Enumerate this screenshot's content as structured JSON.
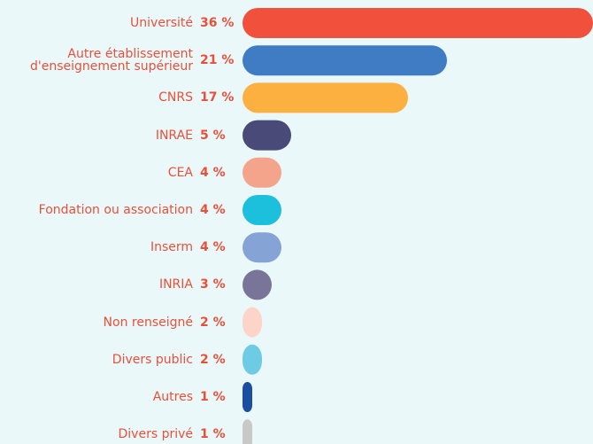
{
  "chart_data": {
    "type": "bar",
    "orientation": "horizontal",
    "categories": [
      "Université",
      "Autre établissement d'enseignement supérieur",
      "CNRS",
      "INRAE",
      "CEA",
      "Fondation ou association",
      "Inserm",
      "INRIA",
      "Non renseigné",
      "Divers public",
      "Autres",
      "Divers privé"
    ],
    "values": [
      36,
      21,
      17,
      5,
      4,
      4,
      4,
      3,
      2,
      2,
      1,
      1
    ],
    "value_labels": [
      "36 %",
      "21 %",
      "17 %",
      "5 %",
      "4 %",
      "4 %",
      "4 %",
      "3 %",
      "2 %",
      "2 %",
      "1 %",
      "1 %"
    ],
    "colors": [
      "#f0503c",
      "#3f7cc4",
      "#fbb040",
      "#4a4a78",
      "#f5a48c",
      "#1cc0dd",
      "#86a3d6",
      "#787598",
      "#fdd5c8",
      "#6dcbe3",
      "#1a4ea0",
      "#c8c8c8"
    ],
    "label_color": "#e8503a",
    "xlim": [
      0,
      36
    ]
  }
}
